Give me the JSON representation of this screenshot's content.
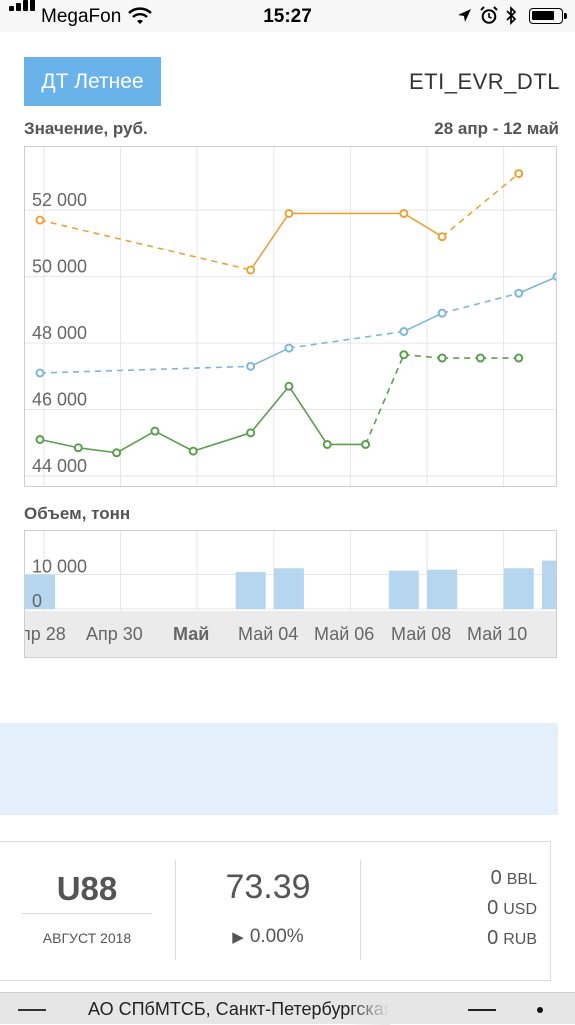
{
  "status_bar": {
    "carrier": "MegaFon",
    "time": "15:27",
    "icons": [
      "signal-icon",
      "wifi-icon",
      "location-icon",
      "alarm-icon",
      "bluetooth-icon",
      "battery-icon"
    ]
  },
  "header": {
    "instrument_button": "ДТ Летнее",
    "instrument_code": "ETI_EVR_DTL"
  },
  "price_chart": {
    "label": "Значение, руб.",
    "date_range": "28 апр - 12 май"
  },
  "volume_chart": {
    "label": "Объем, тонн"
  },
  "chart_data": [
    {
      "type": "line",
      "title": "Значение, руб.",
      "x_labels": [
        "пр 28",
        "Апр 30",
        "Май",
        "Май 04",
        "Май 06",
        "Май 08",
        "Май 10"
      ],
      "y_ticks": [
        "44 000",
        "46 000",
        "48 000",
        "50 000",
        "52 000"
      ],
      "ylim": [
        43700,
        53900
      ],
      "grid": true,
      "series": [
        {
          "color": "#e8a33a",
          "points": [
            [
              0,
              51700
            ],
            [
              5.5,
              50200
            ],
            [
              6.5,
              51900
            ],
            [
              9.5,
              51900
            ],
            [
              10.5,
              51200
            ],
            [
              12.5,
              53100
            ]
          ],
          "dashed_segments": [
            0,
            4
          ]
        },
        {
          "color": "#7fb5d9",
          "points": [
            [
              0,
              47100
            ],
            [
              5.5,
              47300
            ],
            [
              6.5,
              47850
            ],
            [
              9.5,
              48350
            ],
            [
              10.5,
              48900
            ],
            [
              12.5,
              49500
            ],
            [
              13.5,
              50000
            ]
          ],
          "dashed_segments": [
            0,
            2,
            4
          ]
        },
        {
          "color": "#5c9e4f",
          "points": [
            [
              0,
              45100
            ],
            [
              1,
              44850
            ],
            [
              2,
              44700
            ],
            [
              3,
              45350
            ],
            [
              4,
              44750
            ],
            [
              5.5,
              45300
            ],
            [
              6.5,
              46700
            ],
            [
              7.5,
              44950
            ],
            [
              8.5,
              44950
            ],
            [
              9.5,
              47650
            ],
            [
              10.5,
              47550
            ],
            [
              11.5,
              47550
            ],
            [
              12.5,
              47550
            ]
          ],
          "dashed_segments": [
            8,
            9,
            10,
            11
          ]
        }
      ]
    },
    {
      "type": "bar",
      "title": "Объем, тонн",
      "y_ticks": [
        "0",
        "10 000"
      ],
      "ylim": [
        0,
        22000
      ],
      "color": "#b5d6ee",
      "bars": [
        [
          0,
          10000
        ],
        [
          5.5,
          10700
        ],
        [
          6.5,
          11800
        ],
        [
          9.5,
          11100
        ],
        [
          10.5,
          11400
        ],
        [
          12.5,
          11800
        ],
        [
          13.5,
          14000
        ]
      ]
    }
  ],
  "info_card": {
    "contract": "U88",
    "contract_month": "АВГУСТ 2018",
    "last_price": "73.39",
    "change": "0.00%",
    "volumes": [
      {
        "value": "0",
        "unit": "BBL"
      },
      {
        "value": "0",
        "unit": "USD"
      },
      {
        "value": "0",
        "unit": "RUB"
      }
    ]
  },
  "browser_footer": {
    "site_name": "АО СПбМТСБ, Санкт-Петербургская"
  }
}
